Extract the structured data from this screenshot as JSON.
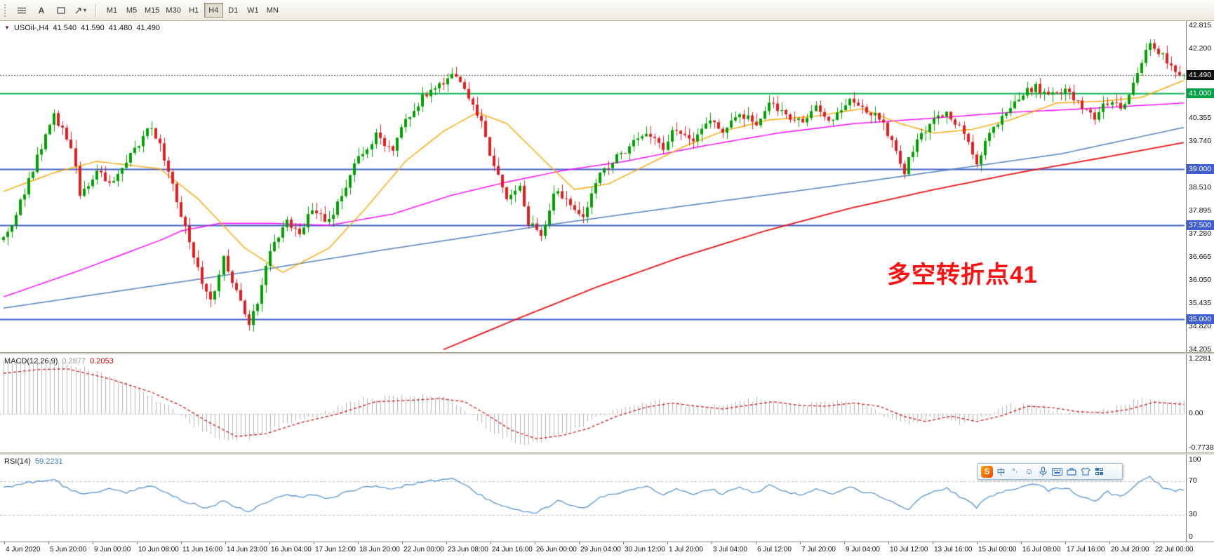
{
  "toolbar": {
    "text_tool_label": "A",
    "timeframes": [
      "M1",
      "M5",
      "M15",
      "M30",
      "H1",
      "H4",
      "D1",
      "W1",
      "MN"
    ],
    "active_timeframe": "H4"
  },
  "main_chart": {
    "symbol": "USOil-,H4",
    "open": "41.540",
    "high": "41.590",
    "low": "41.480",
    "close": "41.490",
    "current_price": "41.490",
    "annotation": {
      "text": "多空转折点41",
      "color": "#fe1010"
    },
    "axis": {
      "max": 42.815,
      "min": 34.205,
      "labels": [
        "42.815",
        "42.200",
        "40.355",
        "39.740",
        "38.510",
        "37.895",
        "37.280",
        "36.665",
        "36.050",
        "35.435",
        "34.820",
        "34.205"
      ]
    },
    "levels": [
      {
        "price": 41.0,
        "label": "41.000",
        "color": "#00b050",
        "badge": "#00a047",
        "current": false
      },
      {
        "price": 39.0,
        "label": "39.000",
        "color": "#3f5fd0",
        "badge": "#3f5fd0",
        "current": false
      },
      {
        "price": 37.5,
        "label": "37.500",
        "color": "#3f5fd0",
        "badge": "#3f5fd0",
        "current": false
      },
      {
        "price": 35.0,
        "label": "35.000",
        "color": "#3f5fd0",
        "badge": "#3f5fd0",
        "current": false
      },
      {
        "price": 41.49,
        "label": "41.490",
        "color": "#555555",
        "badge": "#111111",
        "current": true
      }
    ]
  },
  "chart_data": {
    "type": "candlestick",
    "title": "USOil-,H4",
    "bars": 280,
    "ylim": [
      34.205,
      42.815
    ],
    "bull_color": "#00a000",
    "bear_color": "#e02020",
    "price_keypoints": [
      [
        0,
        37.2
      ],
      [
        1,
        37.3
      ],
      [
        5,
        38.4
      ],
      [
        12,
        40.45
      ],
      [
        16,
        39.6
      ],
      [
        18,
        38.35
      ],
      [
        22,
        38.9
      ],
      [
        26,
        38.6
      ],
      [
        29,
        39.2
      ],
      [
        35,
        40.15
      ],
      [
        38,
        39.3
      ],
      [
        42,
        37.8
      ],
      [
        46,
        36.3
      ],
      [
        49,
        35.45
      ],
      [
        52,
        36.6
      ],
      [
        55,
        35.7
      ],
      [
        58,
        34.95
      ],
      [
        60,
        35.5
      ],
      [
        63,
        36.9
      ],
      [
        67,
        37.6
      ],
      [
        70,
        37.3
      ],
      [
        73,
        37.9
      ],
      [
        77,
        37.6
      ],
      [
        81,
        38.6
      ],
      [
        84,
        39.3
      ],
      [
        88,
        39.9
      ],
      [
        92,
        39.5
      ],
      [
        95,
        40.3
      ],
      [
        99,
        40.9
      ],
      [
        102,
        41.1
      ],
      [
        106,
        41.55
      ],
      [
        110,
        40.9
      ],
      [
        113,
        40.3
      ],
      [
        115,
        39.3
      ],
      [
        119,
        38.2
      ],
      [
        122,
        38.6
      ],
      [
        124,
        37.6
      ],
      [
        127,
        37.15
      ],
      [
        130,
        38.4
      ],
      [
        134,
        38.1
      ],
      [
        137,
        37.7
      ],
      [
        141,
        38.8
      ],
      [
        145,
        39.3
      ],
      [
        148,
        39.6
      ],
      [
        152,
        39.9
      ],
      [
        156,
        39.6
      ],
      [
        159,
        40.1
      ],
      [
        163,
        39.7
      ],
      [
        167,
        40.3
      ],
      [
        170,
        40.0
      ],
      [
        174,
        40.5
      ],
      [
        178,
        40.2
      ],
      [
        181,
        40.8
      ],
      [
        185,
        40.4
      ],
      [
        189,
        40.2
      ],
      [
        192,
        40.6
      ],
      [
        196,
        40.3
      ],
      [
        200,
        40.9
      ],
      [
        203,
        40.6
      ],
      [
        207,
        40.4
      ],
      [
        211,
        39.5
      ],
      [
        213,
        38.95
      ],
      [
        216,
        39.8
      ],
      [
        220,
        40.3
      ],
      [
        223,
        40.5
      ],
      [
        227,
        40.0
      ],
      [
        230,
        39.15
      ],
      [
        233,
        40.0
      ],
      [
        236,
        40.4
      ],
      [
        240,
        40.9
      ],
      [
        244,
        41.2
      ],
      [
        247,
        40.9
      ],
      [
        251,
        41.1
      ],
      [
        255,
        40.6
      ],
      [
        258,
        40.4
      ],
      [
        261,
        40.8
      ],
      [
        264,
        40.6
      ],
      [
        266,
        41.0
      ],
      [
        269,
        41.9
      ],
      [
        271,
        42.4
      ],
      [
        274,
        42.0
      ],
      [
        276,
        41.7
      ],
      [
        279,
        41.49
      ]
    ],
    "overlays": [
      {
        "name": "ma-slow-red",
        "color": "#ee1111",
        "width": 1.8,
        "points": [
          [
            104,
            34.2
          ],
          [
            120,
            34.95
          ],
          [
            140,
            35.85
          ],
          [
            160,
            36.65
          ],
          [
            180,
            37.35
          ],
          [
            200,
            37.95
          ],
          [
            220,
            38.45
          ],
          [
            240,
            38.9
          ],
          [
            260,
            39.3
          ],
          [
            279,
            39.7
          ]
        ]
      },
      {
        "name": "ma-100-steelblue",
        "color": "#4f81bd",
        "width": 1.5,
        "points": [
          [
            0,
            35.3
          ],
          [
            30,
            35.8
          ],
          [
            60,
            36.3
          ],
          [
            90,
            36.85
          ],
          [
            128,
            37.5
          ],
          [
            160,
            38.0
          ],
          [
            190,
            38.45
          ],
          [
            225,
            39.0
          ],
          [
            250,
            39.4
          ],
          [
            279,
            40.1
          ]
        ]
      },
      {
        "name": "ma-mid-magenta",
        "color": "#ff00ff",
        "width": 1.4,
        "points": [
          [
            0,
            35.6
          ],
          [
            18,
            36.3
          ],
          [
            37,
            37.1
          ],
          [
            42,
            37.35
          ],
          [
            51,
            37.55
          ],
          [
            64,
            37.55
          ],
          [
            77,
            37.5
          ],
          [
            92,
            37.8
          ],
          [
            106,
            38.3
          ],
          [
            119,
            38.65
          ],
          [
            132,
            38.95
          ],
          [
            147,
            39.2
          ],
          [
            165,
            39.6
          ],
          [
            183,
            39.95
          ],
          [
            201,
            40.2
          ],
          [
            220,
            40.35
          ],
          [
            238,
            40.5
          ],
          [
            256,
            40.6
          ],
          [
            279,
            40.75
          ]
        ]
      },
      {
        "name": "ma-fast-orange",
        "color": "#ffa500",
        "width": 1.4,
        "points": [
          [
            0,
            38.4
          ],
          [
            12,
            38.9
          ],
          [
            22,
            39.2
          ],
          [
            37,
            39.0
          ],
          [
            46,
            38.2
          ],
          [
            57,
            36.9
          ],
          [
            66,
            36.25
          ],
          [
            77,
            36.9
          ],
          [
            86,
            38.0
          ],
          [
            95,
            39.2
          ],
          [
            104,
            40.0
          ],
          [
            112,
            40.5
          ],
          [
            119,
            40.2
          ],
          [
            128,
            39.2
          ],
          [
            135,
            38.45
          ],
          [
            143,
            38.6
          ],
          [
            152,
            39.1
          ],
          [
            161,
            39.6
          ],
          [
            170,
            40.0
          ],
          [
            181,
            40.3
          ],
          [
            192,
            40.4
          ],
          [
            203,
            40.6
          ],
          [
            212,
            40.2
          ],
          [
            220,
            39.95
          ],
          [
            229,
            40.05
          ],
          [
            238,
            40.3
          ],
          [
            249,
            40.75
          ],
          [
            260,
            40.8
          ],
          [
            269,
            40.9
          ],
          [
            279,
            41.35
          ]
        ]
      }
    ],
    "macd_signal_keypoints": [
      [
        0,
        0.9
      ],
      [
        8,
        0.98
      ],
      [
        15,
        1.0
      ],
      [
        25,
        0.78
      ],
      [
        35,
        0.48
      ],
      [
        42,
        0.18
      ],
      [
        48,
        -0.16
      ],
      [
        55,
        -0.5
      ],
      [
        62,
        -0.44
      ],
      [
        70,
        -0.2
      ],
      [
        79,
        0.0
      ],
      [
        88,
        0.27
      ],
      [
        96,
        0.3
      ],
      [
        103,
        0.34
      ],
      [
        109,
        0.27
      ],
      [
        114,
        0.0
      ],
      [
        120,
        -0.36
      ],
      [
        126,
        -0.55
      ],
      [
        132,
        -0.48
      ],
      [
        138,
        -0.33
      ],
      [
        145,
        -0.05
      ],
      [
        152,
        0.15
      ],
      [
        158,
        0.24
      ],
      [
        164,
        0.17
      ],
      [
        170,
        0.11
      ],
      [
        176,
        0.19
      ],
      [
        182,
        0.27
      ],
      [
        188,
        0.19
      ],
      [
        194,
        0.17
      ],
      [
        201,
        0.24
      ],
      [
        207,
        0.17
      ],
      [
        213,
        -0.06
      ],
      [
        218,
        -0.17
      ],
      [
        224,
        -0.05
      ],
      [
        230,
        -0.17
      ],
      [
        236,
        -0.04
      ],
      [
        242,
        0.17
      ],
      [
        248,
        0.14
      ],
      [
        254,
        0.05
      ],
      [
        260,
        0.02
      ],
      [
        266,
        0.1
      ],
      [
        272,
        0.26
      ],
      [
        279,
        0.21
      ]
    ],
    "rsi_keypoints": [
      [
        0,
        62
      ],
      [
        5,
        68
      ],
      [
        12,
        72
      ],
      [
        16,
        58
      ],
      [
        20,
        55
      ],
      [
        25,
        61
      ],
      [
        29,
        57
      ],
      [
        35,
        65
      ],
      [
        40,
        52
      ],
      [
        44,
        44
      ],
      [
        48,
        38
      ],
      [
        52,
        46
      ],
      [
        55,
        40
      ],
      [
        58,
        34
      ],
      [
        61,
        42
      ],
      [
        64,
        50
      ],
      [
        67,
        55
      ],
      [
        70,
        50
      ],
      [
        73,
        54
      ],
      [
        77,
        49
      ],
      [
        81,
        57
      ],
      [
        84,
        61
      ],
      [
        88,
        65
      ],
      [
        92,
        60
      ],
      [
        95,
        65
      ],
      [
        99,
        69
      ],
      [
        103,
        72
      ],
      [
        106,
        74
      ],
      [
        110,
        62
      ],
      [
        114,
        50
      ],
      [
        118,
        40
      ],
      [
        122,
        36
      ],
      [
        125,
        31
      ],
      [
        128,
        38
      ],
      [
        131,
        46
      ],
      [
        134,
        42
      ],
      [
        137,
        37
      ],
      [
        141,
        51
      ],
      [
        145,
        56
      ],
      [
        148,
        59
      ],
      [
        152,
        63
      ],
      [
        156,
        55
      ],
      [
        159,
        62
      ],
      [
        163,
        53
      ],
      [
        167,
        61
      ],
      [
        170,
        55
      ],
      [
        174,
        62
      ],
      [
        178,
        56
      ],
      [
        181,
        66
      ],
      [
        185,
        57
      ],
      [
        189,
        53
      ],
      [
        192,
        60
      ],
      [
        196,
        54
      ],
      [
        200,
        64
      ],
      [
        203,
        57
      ],
      [
        207,
        53
      ],
      [
        211,
        43
      ],
      [
        214,
        37
      ],
      [
        217,
        50
      ],
      [
        220,
        57
      ],
      [
        223,
        61
      ],
      [
        227,
        49
      ],
      [
        230,
        39
      ],
      [
        233,
        52
      ],
      [
        236,
        57
      ],
      [
        240,
        63
      ],
      [
        244,
        67
      ],
      [
        247,
        59
      ],
      [
        251,
        63
      ],
      [
        255,
        51
      ],
      [
        258,
        47
      ],
      [
        261,
        57
      ],
      [
        264,
        51
      ],
      [
        266,
        59
      ],
      [
        269,
        70
      ],
      [
        271,
        75
      ],
      [
        274,
        63
      ],
      [
        276,
        59
      ],
      [
        279,
        59
      ]
    ]
  },
  "macd": {
    "name": "MACD(12,26,9)",
    "value_main": "0.2877",
    "value_signal": "0.2053",
    "histogram_color": "#b4b4b4",
    "signal_color": "#d40000",
    "axis": {
      "max": 1.2281,
      "min": -0.7738,
      "labels": [
        "1.2281",
        "0.00",
        "-0.7738"
      ]
    }
  },
  "rsi": {
    "name": "RSI(14)",
    "value": "59.2231",
    "line_color": "#4a8fd0",
    "levels": [
      70,
      30
    ],
    "axis_labels": [
      "100",
      "70",
      "30",
      "0"
    ]
  },
  "time_axis": {
    "labels": [
      "4 Jun 2020",
      "5 Jun 20:00",
      "9 Jun 00:00",
      "10 Jun 08:00",
      "11 Jun 16:00",
      "14 Jun 23:00",
      "16 Jun 04:00",
      "17 Jun 12:00",
      "18 Jun 20:00",
      "22 Jun 00:00",
      "23 Jun 08:00",
      "24 Jun 16:00",
      "26 Jun 00:00",
      "29 Jun 04:00",
      "30 Jun 12:00",
      "1 Jul 20:00",
      "3 Jul 04:00",
      "6 Jul 12:00",
      "7 Jul 20:00",
      "9 Jul 04:00",
      "10 Jul 12:00",
      "13 Jul 16:00",
      "15 Jul 00:00",
      "16 Jul 08:00",
      "17 Jul 16:00",
      "20 Jul 20:00",
      "22 Jul 00:00"
    ]
  },
  "ime_toolbar": {
    "logo_letter": "S",
    "chinese_label": "中",
    "punct_label": "°·",
    "emoji_glyph": "☺"
  }
}
